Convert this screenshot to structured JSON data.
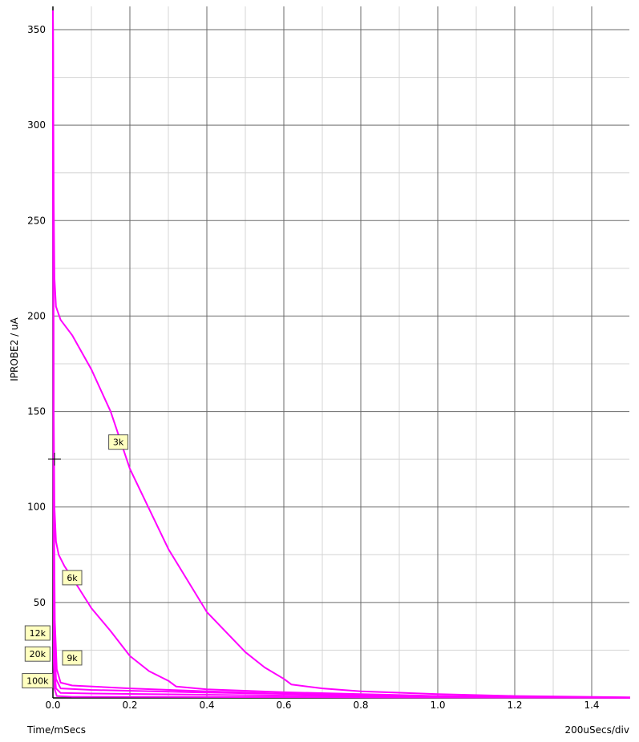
{
  "chart_data": {
    "type": "line",
    "ylabel": "IPROBE2 / uA",
    "xlabel": "Time/mSecs",
    "x_scale_note": "200uSecs/div",
    "xlim": [
      0,
      1.5
    ],
    "ylim": [
      0,
      360
    ],
    "x_ticks": [
      0.0,
      0.2,
      0.4,
      0.6,
      0.8,
      1.0,
      1.2,
      1.4
    ],
    "x_tick_labels": [
      "0.0",
      "0.2",
      "0.4",
      "0.6",
      "0.8",
      "1.0",
      "1.2",
      "1.4"
    ],
    "y_ticks": [
      50,
      100,
      150,
      200,
      250,
      300,
      350
    ],
    "y_tick_labels": [
      "50",
      "100",
      "150",
      "200",
      "250",
      "300",
      "350"
    ],
    "grid": "on",
    "series_color": "#ff00ff",
    "series": [
      {
        "name": "3k",
        "label_at": [
          0.17,
          134
        ],
        "points": [
          [
            0,
            360
          ],
          [
            0.002,
            260
          ],
          [
            0.004,
            220
          ],
          [
            0.008,
            205
          ],
          [
            0.02,
            198
          ],
          [
            0.05,
            190
          ],
          [
            0.1,
            172
          ],
          [
            0.15,
            150
          ],
          [
            0.2,
            120
          ],
          [
            0.3,
            78
          ],
          [
            0.4,
            45
          ],
          [
            0.5,
            24
          ],
          [
            0.55,
            16
          ],
          [
            0.6,
            10
          ],
          [
            0.62,
            7
          ],
          [
            0.7,
            5
          ],
          [
            0.8,
            3.5
          ],
          [
            1.0,
            2
          ],
          [
            1.2,
            1
          ],
          [
            1.5,
            0.3
          ]
        ]
      },
      {
        "name": "6k",
        "label_at": [
          0.05,
          63
        ],
        "points": [
          [
            0,
            360
          ],
          [
            0.002,
            150
          ],
          [
            0.004,
            100
          ],
          [
            0.008,
            82
          ],
          [
            0.015,
            75
          ],
          [
            0.03,
            69
          ],
          [
            0.05,
            63
          ],
          [
            0.1,
            47
          ],
          [
            0.15,
            35
          ],
          [
            0.2,
            22
          ],
          [
            0.25,
            14
          ],
          [
            0.3,
            9
          ],
          [
            0.32,
            6
          ],
          [
            0.4,
            4.5
          ],
          [
            0.6,
            3
          ],
          [
            0.8,
            2
          ],
          [
            1.0,
            1
          ],
          [
            1.2,
            0.6
          ],
          [
            1.5,
            0.2
          ]
        ]
      },
      {
        "name": "9k",
        "label_at": [
          0.05,
          21
        ],
        "points": [
          [
            0,
            360
          ],
          [
            0.002,
            120
          ],
          [
            0.005,
            40
          ],
          [
            0.01,
            15
          ],
          [
            0.02,
            8
          ],
          [
            0.05,
            6.5
          ],
          [
            0.2,
            5
          ],
          [
            0.4,
            3.5
          ],
          [
            0.6,
            2.2
          ],
          [
            0.8,
            1.5
          ],
          [
            1.0,
            0.8
          ],
          [
            1.2,
            0.4
          ],
          [
            1.5,
            0.1
          ]
        ]
      },
      {
        "name": "12k",
        "label_at": [
          -0.04,
          34
        ],
        "points": [
          [
            0,
            360
          ],
          [
            0.002,
            80
          ],
          [
            0.004,
            30
          ],
          [
            0.008,
            10
          ],
          [
            0.02,
            5
          ],
          [
            0.1,
            4.2
          ],
          [
            0.4,
            2.8
          ],
          [
            0.8,
            1.4
          ],
          [
            1.0,
            0.9
          ],
          [
            1.5,
            0.2
          ]
        ]
      },
      {
        "name": "20k",
        "label_at": [
          -0.04,
          23
        ],
        "points": [
          [
            0,
            360
          ],
          [
            0.002,
            50
          ],
          [
            0.004,
            15
          ],
          [
            0.008,
            5
          ],
          [
            0.02,
            2.6
          ],
          [
            0.1,
            2.3
          ],
          [
            0.6,
            1.2
          ],
          [
            1.0,
            0.6
          ],
          [
            1.5,
            0.1
          ]
        ]
      },
      {
        "name": "100k",
        "label_at": [
          -0.04,
          9
        ],
        "points": [
          [
            0,
            360
          ],
          [
            0.002,
            20
          ],
          [
            0.004,
            5
          ],
          [
            0.01,
            1
          ],
          [
            0.05,
            0.6
          ],
          [
            0.5,
            0.4
          ],
          [
            1.5,
            0.1
          ]
        ]
      }
    ]
  }
}
